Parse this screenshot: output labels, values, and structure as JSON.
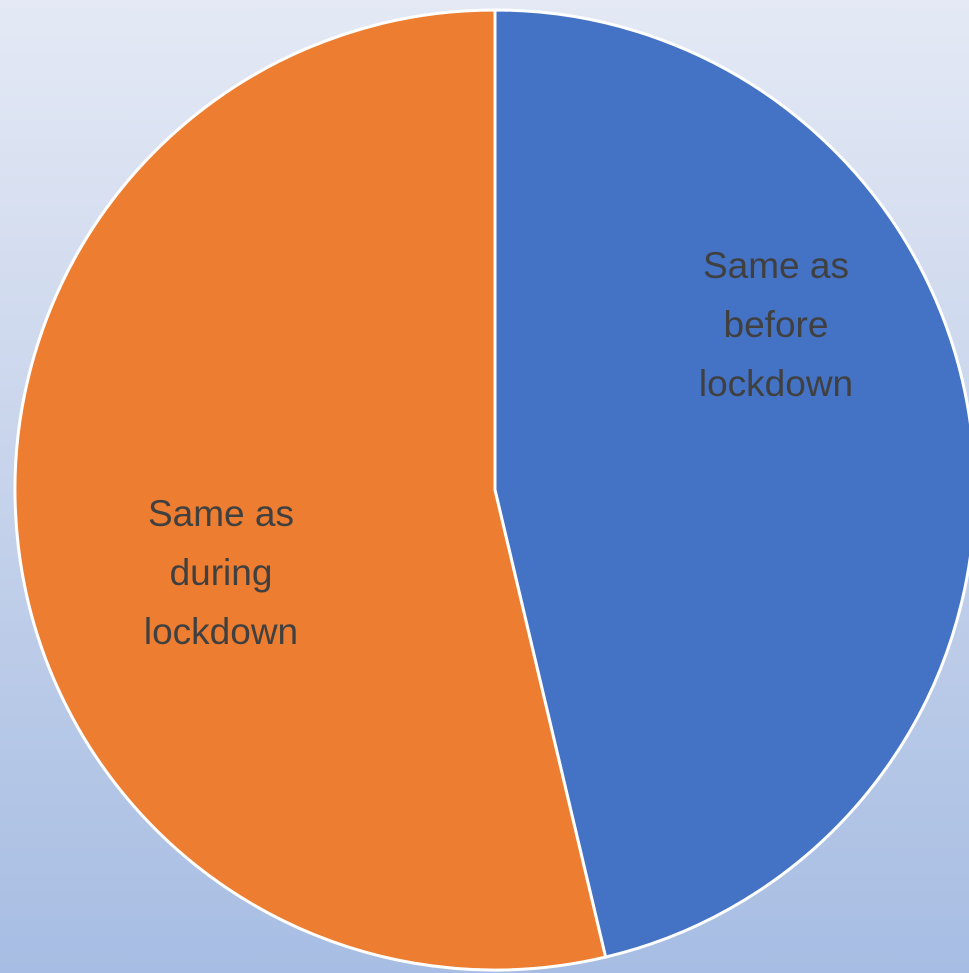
{
  "chart_data": {
    "type": "pie",
    "title": "",
    "slices": [
      {
        "label_lines": [
          "Same as",
          "before",
          "lockdown"
        ],
        "value": 46.3,
        "color": "#4472c4"
      },
      {
        "label_lines": [
          "Same as",
          "during",
          "lockdown"
        ],
        "value": 53.7,
        "color": "#ed7d31"
      }
    ],
    "labels_inside": true,
    "legend": "none",
    "slice_border_color": "#ffffff"
  }
}
